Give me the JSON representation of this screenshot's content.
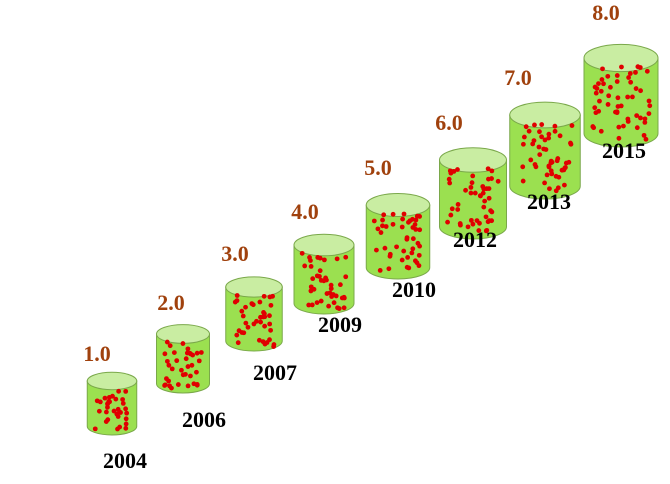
{
  "chart_data": {
    "type": "pictorial",
    "categories": [
      "2004",
      "2006",
      "2007",
      "2009",
      "2010",
      "2012",
      "2013",
      "2015"
    ],
    "values": [
      1,
      2,
      3,
      4,
      5,
      6,
      7,
      8
    ],
    "value_labels": [
      "1.0",
      "2.0",
      "3.0",
      "4.0",
      "5.0",
      "6.0",
      "7.0",
      "8.0"
    ],
    "color": "#9be050"
  }
}
